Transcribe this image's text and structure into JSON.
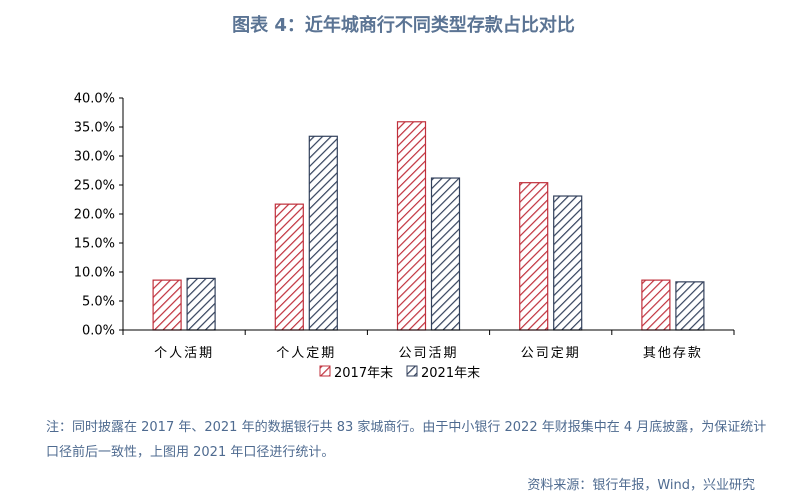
{
  "title": "图表 4：近年城商行不同类型存款占比对比",
  "note": "注：同时披露在 2017 年、2021 年的数据银行共 83 家城商行。由于中小银行 2022 年财报集中在 4 月底披露，为保证统计口径前后一致性，上图用 2021 年口径进行统计。",
  "source": "资料来源：银行年报，Wind，兴业研究",
  "chart_data": {
    "type": "bar",
    "categories": [
      "个人活期",
      "个人定期",
      "公司活期",
      "公司定期",
      "其他存款"
    ],
    "series": [
      {
        "name": "2017年末",
        "values": [
          8.6,
          21.7,
          35.9,
          25.4,
          8.6
        ],
        "color": "#c0303c"
      },
      {
        "name": "2021年末",
        "values": [
          8.9,
          33.4,
          26.2,
          23.1,
          8.3
        ],
        "color": "#33415c"
      }
    ],
    "ylim": [
      0,
      40
    ],
    "yticks": [
      "0.0%",
      "5.0%",
      "10.0%",
      "15.0%",
      "20.0%",
      "25.0%",
      "30.0%",
      "35.0%",
      "40.0%"
    ],
    "legend": "bottom",
    "grid": false
  }
}
